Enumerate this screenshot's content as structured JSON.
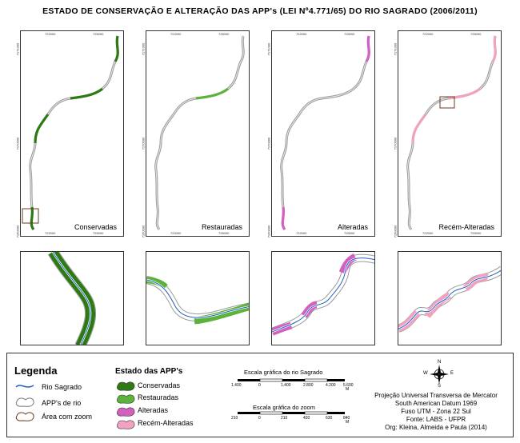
{
  "title": "ESTADO DE CONSERVAÇÃO E ALTERAÇÃO DAS APP's (LEI Nº4.771/65) DO RIO SAGRADO (2006/2011)",
  "coordinates": {
    "top": [
      "722000",
      "725000"
    ],
    "bottom": [
      "722000",
      "725000"
    ],
    "left": [
      "7171000",
      "7170000",
      "7160000"
    ],
    "right": [
      "7171000",
      "7170000",
      "7160000"
    ]
  },
  "panels": [
    {
      "label": "Conservadas",
      "color": "#2d7a12"
    },
    {
      "label": "Restauradas",
      "color": "#5cb33a"
    },
    {
      "label": "Alteradas",
      "color": "#d35fc0"
    },
    {
      "label": "Recém-Alteradas",
      "color": "#f0a2c0"
    }
  ],
  "legend": {
    "title": "Legenda",
    "items": [
      "Rio Sagrado",
      "APP's de rio",
      "Área com zoom"
    ],
    "estado_title": "Estado das APP's",
    "estado_items": [
      "Conservadas",
      "Restauradas",
      "Alteradas",
      "Recém-Alteradas"
    ],
    "estado_colors": [
      "#2d7a12",
      "#5cb33a",
      "#d35fc0",
      "#f0a2c0"
    ]
  },
  "scale_rio": {
    "title": "Escala gráfica do rio Sagrado",
    "labels": [
      "1.400",
      "0",
      "1.400",
      "2.800",
      "4.200",
      "5.600"
    ],
    "unit": "M"
  },
  "scale_zoom": {
    "title": "Escala gráfica do zoom",
    "labels": [
      "210",
      "0",
      "210",
      "420",
      "630",
      "840"
    ],
    "unit": "M"
  },
  "north": {
    "N": "N",
    "S": "S",
    "E": "E",
    "W": "W"
  },
  "credits": [
    "Projeção Universal Transversa de Mercator",
    "South American Datum 1969",
    "Fuso UTM - Zona 22 Sul",
    "Fonte: LABS - UFPR",
    "Org: Kleina, Almeida e Paula (2014)"
  ]
}
